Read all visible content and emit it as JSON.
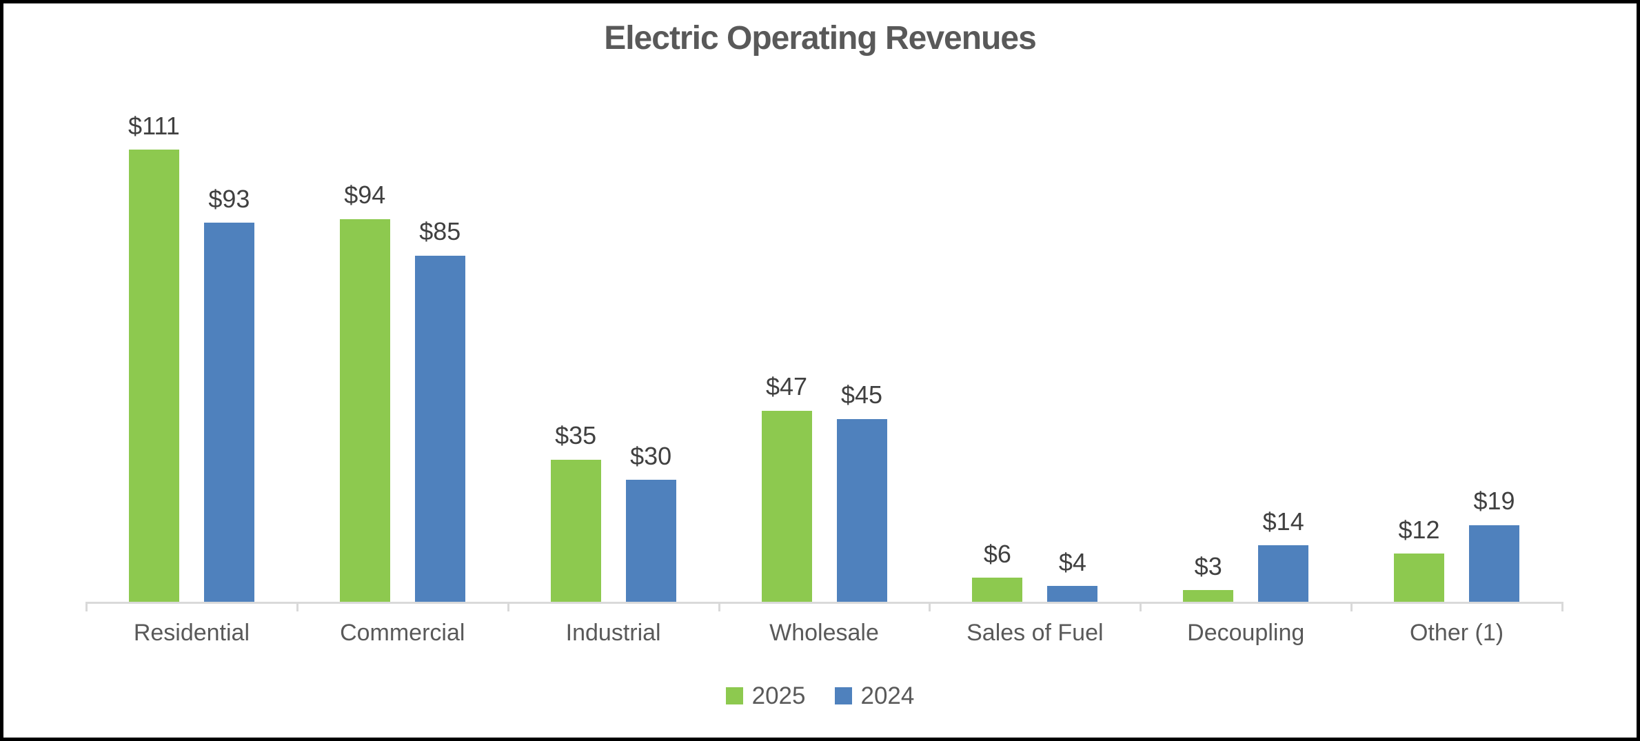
{
  "title": "Electric Operating Revenues",
  "chart_data": {
    "type": "bar",
    "title": "Electric Operating Revenues",
    "categories": [
      "Residential",
      "Commercial",
      "Industrial",
      "Wholesale",
      "Sales of Fuel",
      "Decoupling",
      "Other (1)"
    ],
    "series": [
      {
        "name": "2025",
        "color": "#8DC94F",
        "values": [
          111,
          94,
          35,
          47,
          6,
          3,
          12
        ],
        "labels": [
          "$111",
          "$94",
          "$35",
          "$47",
          "$6",
          "$3",
          "$12"
        ]
      },
      {
        "name": "2024",
        "color": "#4F81BD",
        "values": [
          93,
          85,
          30,
          45,
          4,
          14,
          19
        ],
        "labels": [
          "$93",
          "$85",
          "$30",
          "$45",
          "$4",
          "$14",
          "$19"
        ]
      }
    ],
    "xlabel": "",
    "ylabel": "",
    "ylim": [
      0,
      147
    ],
    "grid": false,
    "y_axis_visible": false,
    "data_labels_visible": true,
    "legend_position": "bottom"
  },
  "colors": {
    "title_text": "#595959",
    "data_label_text": "#404040",
    "category_text": "#595959",
    "axis_line": "#D9D9D9",
    "background": "#FFFFFF",
    "frame_border": "#000000",
    "series_2025": "#8DC94F",
    "series_2024": "#4F81BD"
  }
}
